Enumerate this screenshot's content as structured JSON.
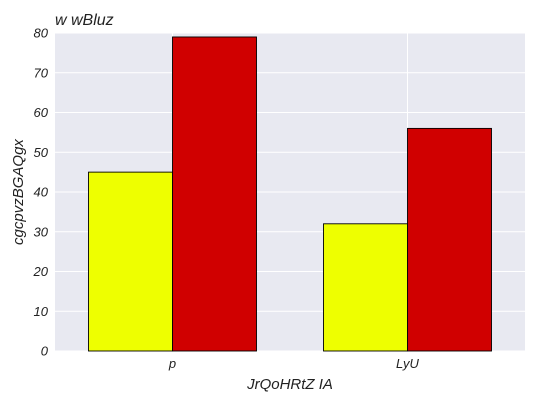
{
  "chart_data": {
    "type": "bar",
    "title": "w wBluz",
    "xlabel": "JrQoHRtZ IA",
    "ylabel": "cgcpvzBGAQgx",
    "categories": [
      "p",
      "LyU"
    ],
    "series": [
      {
        "values": [
          45,
          32
        ],
        "color": "#eeff00"
      },
      {
        "values": [
          79,
          56
        ],
        "color": "#d00000"
      }
    ],
    "ylim": [
      0,
      80
    ],
    "yticks": [
      0,
      10,
      20,
      30,
      40,
      50,
      60,
      70,
      80
    ],
    "grid": true,
    "legend": "none",
    "background_color": "#e8e9f1",
    "grid_color": "#ffffff"
  }
}
